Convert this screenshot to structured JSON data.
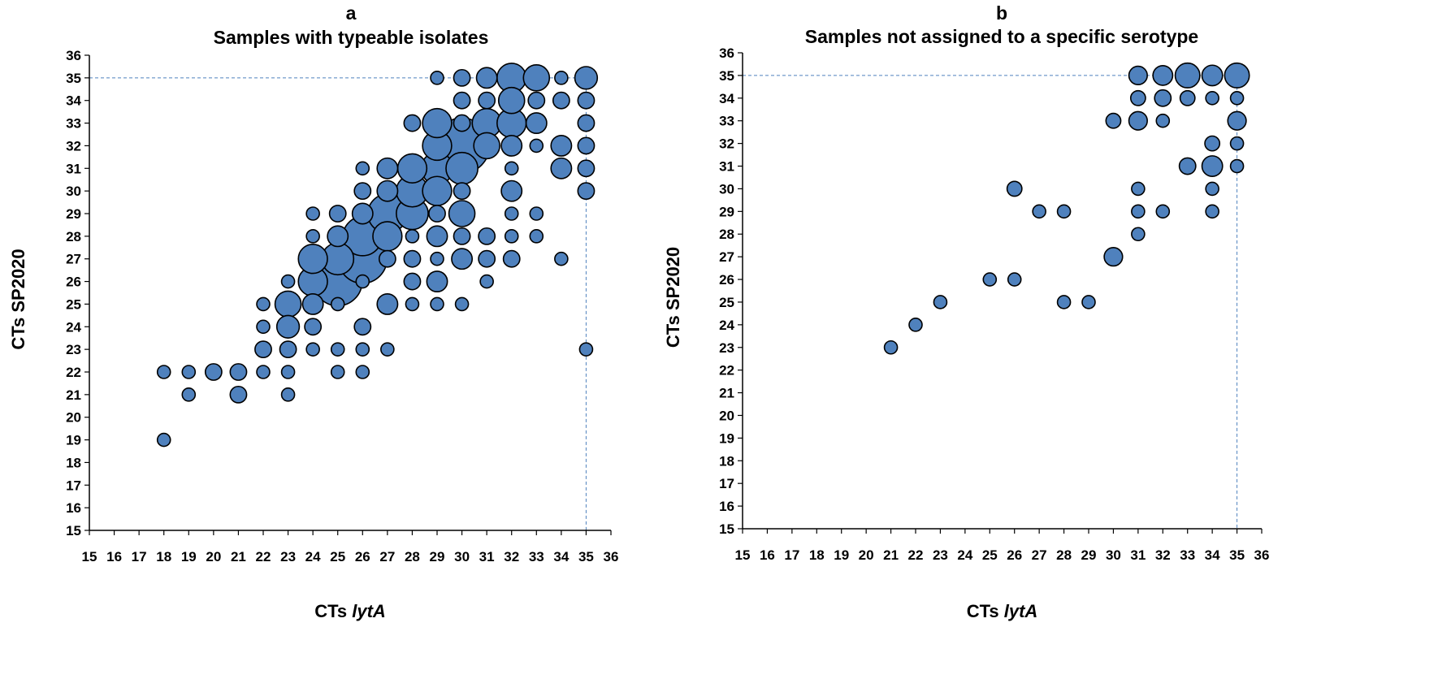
{
  "chart_data": [
    {
      "type": "scatter",
      "panel_label": "a",
      "title": "Samples with typeable isolates",
      "xlabel": "CTs ",
      "xlabel_italic": "lytA",
      "ylabel": "CTs SP2020",
      "xlim": [
        15,
        36
      ],
      "ylim": [
        15,
        36
      ],
      "xticks": [
        "15",
        "16",
        "17",
        "18",
        "19",
        "20",
        "21",
        "22",
        "23",
        "24",
        "25",
        "26",
        "27",
        "28",
        "29",
        "30",
        "31",
        "32",
        "33",
        "34",
        "35",
        "36"
      ],
      "yticks": [
        "15",
        "16",
        "17",
        "18",
        "19",
        "20",
        "21",
        "22",
        "23",
        "24",
        "25",
        "26",
        "27",
        "28",
        "29",
        "30",
        "31",
        "32",
        "33",
        "34",
        "35",
        "36"
      ],
      "reference_lines": {
        "x": 35,
        "y": 35
      },
      "points": [
        {
          "x": 18,
          "y": 22,
          "size": 1
        },
        {
          "x": 19,
          "y": 22,
          "size": 1
        },
        {
          "x": 20,
          "y": 22,
          "size": 1.6
        },
        {
          "x": 21,
          "y": 22,
          "size": 1.6
        },
        {
          "x": 22,
          "y": 22,
          "size": 1
        },
        {
          "x": 23,
          "y": 22,
          "size": 1
        },
        {
          "x": 25,
          "y": 22,
          "size": 1
        },
        {
          "x": 26,
          "y": 22,
          "size": 1
        },
        {
          "x": 18,
          "y": 19,
          "size": 1
        },
        {
          "x": 19,
          "y": 21,
          "size": 1
        },
        {
          "x": 21,
          "y": 21,
          "size": 1.6
        },
        {
          "x": 23,
          "y": 21,
          "size": 1
        },
        {
          "x": 22,
          "y": 23,
          "size": 1.6
        },
        {
          "x": 23,
          "y": 23,
          "size": 1.6
        },
        {
          "x": 24,
          "y": 23,
          "size": 1
        },
        {
          "x": 25,
          "y": 23,
          "size": 1
        },
        {
          "x": 26,
          "y": 23,
          "size": 1
        },
        {
          "x": 27,
          "y": 23,
          "size": 1
        },
        {
          "x": 22,
          "y": 24,
          "size": 1
        },
        {
          "x": 23,
          "y": 24,
          "size": 3
        },
        {
          "x": 24,
          "y": 24,
          "size": 1.6
        },
        {
          "x": 26,
          "y": 24,
          "size": 1.6
        },
        {
          "x": 22,
          "y": 25,
          "size": 1
        },
        {
          "x": 23,
          "y": 25,
          "size": 4
        },
        {
          "x": 24,
          "y": 25,
          "size": 2.5
        },
        {
          "x": 25,
          "y": 25,
          "size": 1
        },
        {
          "x": 27,
          "y": 25,
          "size": 2.5
        },
        {
          "x": 28,
          "y": 25,
          "size": 1
        },
        {
          "x": 29,
          "y": 25,
          "size": 1
        },
        {
          "x": 30,
          "y": 25,
          "size": 1
        },
        {
          "x": 23,
          "y": 26,
          "size": 1
        },
        {
          "x": 24,
          "y": 26,
          "size": 5
        },
        {
          "x": 25,
          "y": 26,
          "size": 14
        },
        {
          "x": 26,
          "y": 26,
          "size": 1
        },
        {
          "x": 28,
          "y": 26,
          "size": 1.6
        },
        {
          "x": 29,
          "y": 26,
          "size": 2.5
        },
        {
          "x": 31,
          "y": 26,
          "size": 1
        },
        {
          "x": 24,
          "y": 27,
          "size": 5
        },
        {
          "x": 25,
          "y": 27,
          "size": 6
        },
        {
          "x": 26,
          "y": 27,
          "size": 14
        },
        {
          "x": 27,
          "y": 27,
          "size": 1.6
        },
        {
          "x": 28,
          "y": 27,
          "size": 1.6
        },
        {
          "x": 29,
          "y": 27,
          "size": 1
        },
        {
          "x": 30,
          "y": 27,
          "size": 2.5
        },
        {
          "x": 31,
          "y": 27,
          "size": 1.6
        },
        {
          "x": 32,
          "y": 27,
          "size": 1.6
        },
        {
          "x": 34,
          "y": 27,
          "size": 1
        },
        {
          "x": 24,
          "y": 28,
          "size": 1
        },
        {
          "x": 25,
          "y": 28,
          "size": 2.5
        },
        {
          "x": 26,
          "y": 28,
          "size": 9
        },
        {
          "x": 27,
          "y": 28,
          "size": 5
        },
        {
          "x": 28,
          "y": 28,
          "size": 1
        },
        {
          "x": 29,
          "y": 28,
          "size": 2.5
        },
        {
          "x": 30,
          "y": 28,
          "size": 1.6
        },
        {
          "x": 31,
          "y": 28,
          "size": 1.6
        },
        {
          "x": 32,
          "y": 28,
          "size": 1
        },
        {
          "x": 33,
          "y": 28,
          "size": 1
        },
        {
          "x": 24,
          "y": 29,
          "size": 1
        },
        {
          "x": 25,
          "y": 29,
          "size": 1.6
        },
        {
          "x": 26,
          "y": 29,
          "size": 2.5
        },
        {
          "x": 27,
          "y": 29,
          "size": 9
        },
        {
          "x": 28,
          "y": 29,
          "size": 6
        },
        {
          "x": 29,
          "y": 29,
          "size": 1.6
        },
        {
          "x": 30,
          "y": 29,
          "size": 4
        },
        {
          "x": 32,
          "y": 29,
          "size": 1
        },
        {
          "x": 33,
          "y": 29,
          "size": 1
        },
        {
          "x": 26,
          "y": 30,
          "size": 1.6
        },
        {
          "x": 27,
          "y": 30,
          "size": 2.5
        },
        {
          "x": 28,
          "y": 30,
          "size": 6
        },
        {
          "x": 29,
          "y": 30,
          "size": 5
        },
        {
          "x": 30,
          "y": 30,
          "size": 1.6
        },
        {
          "x": 32,
          "y": 30,
          "size": 2.5
        },
        {
          "x": 35,
          "y": 30,
          "size": 1.6
        },
        {
          "x": 26,
          "y": 31,
          "size": 1
        },
        {
          "x": 27,
          "y": 31,
          "size": 2.5
        },
        {
          "x": 28,
          "y": 31,
          "size": 5
        },
        {
          "x": 29,
          "y": 31,
          "size": 6
        },
        {
          "x": 30,
          "y": 31,
          "size": 6
        },
        {
          "x": 32,
          "y": 31,
          "size": 1
        },
        {
          "x": 34,
          "y": 31,
          "size": 2.5
        },
        {
          "x": 35,
          "y": 31,
          "size": 1.6
        },
        {
          "x": 29,
          "y": 32,
          "size": 5
        },
        {
          "x": 30,
          "y": 32,
          "size": 18
        },
        {
          "x": 31,
          "y": 32,
          "size": 4
        },
        {
          "x": 32,
          "y": 32,
          "size": 2.5
        },
        {
          "x": 33,
          "y": 32,
          "size": 1
        },
        {
          "x": 34,
          "y": 32,
          "size": 2.5
        },
        {
          "x": 35,
          "y": 32,
          "size": 1.6
        },
        {
          "x": 28,
          "y": 33,
          "size": 1.6
        },
        {
          "x": 29,
          "y": 33,
          "size": 5
        },
        {
          "x": 30,
          "y": 33,
          "size": 1.6
        },
        {
          "x": 31,
          "y": 33,
          "size": 5
        },
        {
          "x": 32,
          "y": 33,
          "size": 5
        },
        {
          "x": 33,
          "y": 33,
          "size": 2.5
        },
        {
          "x": 35,
          "y": 33,
          "size": 1.6
        },
        {
          "x": 30,
          "y": 34,
          "size": 1.6
        },
        {
          "x": 31,
          "y": 34,
          "size": 1.6
        },
        {
          "x": 32,
          "y": 34,
          "size": 4
        },
        {
          "x": 33,
          "y": 34,
          "size": 1.6
        },
        {
          "x": 34,
          "y": 34,
          "size": 1.6
        },
        {
          "x": 35,
          "y": 34,
          "size": 1.6
        },
        {
          "x": 29,
          "y": 35,
          "size": 1
        },
        {
          "x": 30,
          "y": 35,
          "size": 1.6
        },
        {
          "x": 31,
          "y": 35,
          "size": 2.5
        },
        {
          "x": 32,
          "y": 35,
          "size": 5
        },
        {
          "x": 33,
          "y": 35,
          "size": 4
        },
        {
          "x": 34,
          "y": 35,
          "size": 1
        },
        {
          "x": 35,
          "y": 35,
          "size": 3
        },
        {
          "x": 35,
          "y": 23,
          "size": 1
        }
      ]
    },
    {
      "type": "scatter",
      "panel_label": "b",
      "title": "Samples not assigned to a specific serotype",
      "xlabel": "CTs ",
      "xlabel_italic": "lytA",
      "ylabel": "CTs SP2020",
      "xlim": [
        15,
        36
      ],
      "ylim": [
        15,
        36
      ],
      "xticks": [
        "15",
        "16",
        "17",
        "18",
        "19",
        "20",
        "21",
        "22",
        "23",
        "24",
        "25",
        "26",
        "27",
        "28",
        "29",
        "30",
        "31",
        "32",
        "33",
        "34",
        "35",
        "36"
      ],
      "yticks": [
        "15",
        "16",
        "17",
        "18",
        "19",
        "20",
        "21",
        "22",
        "23",
        "24",
        "25",
        "26",
        "27",
        "28",
        "29",
        "30",
        "31",
        "32",
        "33",
        "34",
        "35",
        "36"
      ],
      "reference_lines": {
        "x": 35,
        "y": 35
      },
      "points": [
        {
          "x": 21,
          "y": 23,
          "size": 1
        },
        {
          "x": 22,
          "y": 24,
          "size": 1
        },
        {
          "x": 23,
          "y": 25,
          "size": 1
        },
        {
          "x": 25,
          "y": 26,
          "size": 1
        },
        {
          "x": 26,
          "y": 26,
          "size": 1
        },
        {
          "x": 28,
          "y": 25,
          "size": 1
        },
        {
          "x": 29,
          "y": 25,
          "size": 1
        },
        {
          "x": 30,
          "y": 27,
          "size": 2
        },
        {
          "x": 26,
          "y": 30,
          "size": 1.3
        },
        {
          "x": 27,
          "y": 29,
          "size": 1
        },
        {
          "x": 28,
          "y": 29,
          "size": 1
        },
        {
          "x": 30,
          "y": 33,
          "size": 1.3
        },
        {
          "x": 31,
          "y": 28,
          "size": 1
        },
        {
          "x": 31,
          "y": 29,
          "size": 1
        },
        {
          "x": 31,
          "y": 30,
          "size": 1
        },
        {
          "x": 31,
          "y": 33,
          "size": 2
        },
        {
          "x": 31,
          "y": 34,
          "size": 1.3
        },
        {
          "x": 31,
          "y": 35,
          "size": 2
        },
        {
          "x": 32,
          "y": 29,
          "size": 1
        },
        {
          "x": 32,
          "y": 33,
          "size": 1
        },
        {
          "x": 32,
          "y": 34,
          "size": 1.6
        },
        {
          "x": 32,
          "y": 35,
          "size": 2.3
        },
        {
          "x": 33,
          "y": 31,
          "size": 1.6
        },
        {
          "x": 33,
          "y": 34,
          "size": 1.3
        },
        {
          "x": 33,
          "y": 35,
          "size": 3.6
        },
        {
          "x": 34,
          "y": 29,
          "size": 1
        },
        {
          "x": 34,
          "y": 30,
          "size": 1
        },
        {
          "x": 34,
          "y": 31,
          "size": 2.5
        },
        {
          "x": 34,
          "y": 32,
          "size": 1.3
        },
        {
          "x": 34,
          "y": 34,
          "size": 1
        },
        {
          "x": 34,
          "y": 35,
          "size": 2.5
        },
        {
          "x": 35,
          "y": 31,
          "size": 1
        },
        {
          "x": 35,
          "y": 32,
          "size": 1
        },
        {
          "x": 35,
          "y": 33,
          "size": 2
        },
        {
          "x": 35,
          "y": 34,
          "size": 1
        },
        {
          "x": 35,
          "y": 35,
          "size": 3.6
        }
      ]
    }
  ]
}
